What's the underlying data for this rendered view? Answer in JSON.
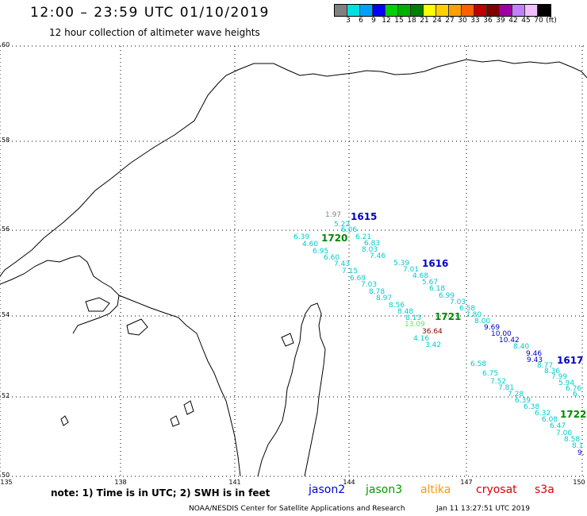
{
  "header": {
    "title": "12:00 – 23:59 UTC 01/10/2019",
    "subtitle": "12 hour collection of altimeter wave heights"
  },
  "legend": {
    "colors": [
      "#808080",
      "#00e0e0",
      "#00a0ff",
      "#0000ff",
      "#00d000",
      "#00b000",
      "#008000",
      "#ffff00",
      "#ffd000",
      "#ffa000",
      "#ff6000",
      "#c00000",
      "#800000",
      "#a000a0",
      "#c080ff",
      "#f0c0ff",
      "#000000"
    ],
    "ticks": [
      "3",
      "6",
      "9",
      "12",
      "15",
      "18",
      "21",
      "24",
      "27",
      "30",
      "33",
      "36",
      "39",
      "42",
      "45",
      "70",
      "(ft)"
    ]
  },
  "map": {
    "lat_labels": [
      "60",
      "58",
      "56",
      "54",
      "52",
      "50"
    ],
    "lon_labels": [
      "135",
      "138",
      "141",
      "144",
      "147",
      "150"
    ]
  },
  "tracks": [
    {
      "label": "1615",
      "color": "#0000cc",
      "values": [
        {
          "t": "1.97",
          "c": "#808080"
        },
        {
          "t": "5.22",
          "c": "#00cccc"
        },
        {
          "t": "6.06",
          "c": "#00cccc"
        },
        {
          "t": "6.21",
          "c": "#00cccc"
        },
        {
          "t": "6.83",
          "c": "#00cccc"
        },
        {
          "t": "8.03",
          "c": "#00cccc"
        },
        {
          "t": "7.46",
          "c": "#00cccc"
        },
        {
          "t": "5.39",
          "c": "#00cccc"
        },
        {
          "t": "7.01",
          "c": "#00cccc"
        },
        {
          "t": "4.68",
          "c": "#00cccc"
        },
        {
          "t": "5.67",
          "c": "#00cccc"
        },
        {
          "t": "6.18",
          "c": "#00cccc"
        },
        {
          "t": "6.99",
          "c": "#00cccc"
        },
        {
          "t": "7.03",
          "c": "#00cccc"
        },
        {
          "t": "6.58",
          "c": "#00cccc"
        },
        {
          "t": "7.80",
          "c": "#00cccc"
        },
        {
          "t": "8.00",
          "c": "#00cccc"
        },
        {
          "t": "9.69",
          "c": "#0000cc"
        },
        {
          "t": "10.00",
          "c": "#0000cc"
        },
        {
          "t": "10.42",
          "c": "#0000cc"
        },
        {
          "t": "8.40",
          "c": "#00cccc"
        },
        {
          "t": "9.46",
          "c": "#0000cc"
        },
        {
          "t": "9.43",
          "c": "#0000cc"
        }
      ]
    },
    {
      "label": "1616",
      "color": "#0000cc",
      "values": []
    },
    {
      "label": "1617",
      "color": "#0000cc",
      "values": [
        {
          "t": "8.77",
          "c": "#00cccc"
        },
        {
          "t": "8.36",
          "c": "#00cccc"
        },
        {
          "t": "7.99",
          "c": "#00cccc"
        },
        {
          "t": "5.94",
          "c": "#00cccc"
        },
        {
          "t": "6.76",
          "c": "#00cccc"
        },
        {
          "t": "6.",
          "c": "#00cccc"
        }
      ]
    },
    {
      "label": "1720",
      "color": "#008800",
      "values": [
        {
          "t": "6.39",
          "c": "#00cccc"
        },
        {
          "t": "4.60",
          "c": "#00cccc"
        },
        {
          "t": "6.95",
          "c": "#00cccc"
        },
        {
          "t": "6.60",
          "c": "#00cccc"
        },
        {
          "t": "7.43",
          "c": "#00cccc"
        },
        {
          "t": "7.15",
          "c": "#00cccc"
        },
        {
          "t": "6.69",
          "c": "#00cccc"
        },
        {
          "t": "7.03",
          "c": "#00cccc"
        },
        {
          "t": "8.78",
          "c": "#00cccc"
        },
        {
          "t": "8.97",
          "c": "#00cccc"
        },
        {
          "t": "8.56",
          "c": "#00cccc"
        },
        {
          "t": "8.48",
          "c": "#00cccc"
        },
        {
          "t": "8.13",
          "c": "#00cccc"
        },
        {
          "t": "13.09",
          "c": "#66dd66"
        },
        {
          "t": "36.64",
          "c": "#880000"
        },
        {
          "t": "4.16",
          "c": "#00cccc"
        },
        {
          "t": "3.42",
          "c": "#00cccc"
        }
      ]
    },
    {
      "label": "1721",
      "color": "#008800",
      "values": []
    },
    {
      "label": "1722",
      "color": "#008800",
      "values": [
        {
          "t": "6.58",
          "c": "#00cccc"
        },
        {
          "t": "6.75",
          "c": "#00cccc"
        },
        {
          "t": "7.52",
          "c": "#00cccc"
        },
        {
          "t": "7.81",
          "c": "#00cccc"
        },
        {
          "t": "7.28",
          "c": "#00cccc"
        },
        {
          "t": "6.39",
          "c": "#00cccc"
        },
        {
          "t": "6.38",
          "c": "#00cccc"
        },
        {
          "t": "6.32",
          "c": "#00cccc"
        },
        {
          "t": "6.08",
          "c": "#00cccc"
        },
        {
          "t": "6.47",
          "c": "#00cccc"
        },
        {
          "t": "7.00",
          "c": "#00cccc"
        },
        {
          "t": "8.58",
          "c": "#00cccc"
        },
        {
          "t": "8.1",
          "c": "#00cccc"
        },
        {
          "t": "9.",
          "c": "#0000cc"
        }
      ]
    }
  ],
  "footer": {
    "note": "note:  1) Time is in UTC;  2) SWH is in feet",
    "satellites": [
      {
        "name": "jason2",
        "color": "#0000dd"
      },
      {
        "name": "jason3",
        "color": "#009900"
      },
      {
        "name": "altika",
        "color": "#ff9900"
      },
      {
        "name": "cryosat",
        "color": "#dd0000"
      },
      {
        "name": "s3a",
        "color": "#dd0000"
      }
    ],
    "credit": "NOAA/NESDIS Center for Satellite Applications and Research",
    "timestamp": "Jan 11 13:27:51 UTC 2019"
  }
}
